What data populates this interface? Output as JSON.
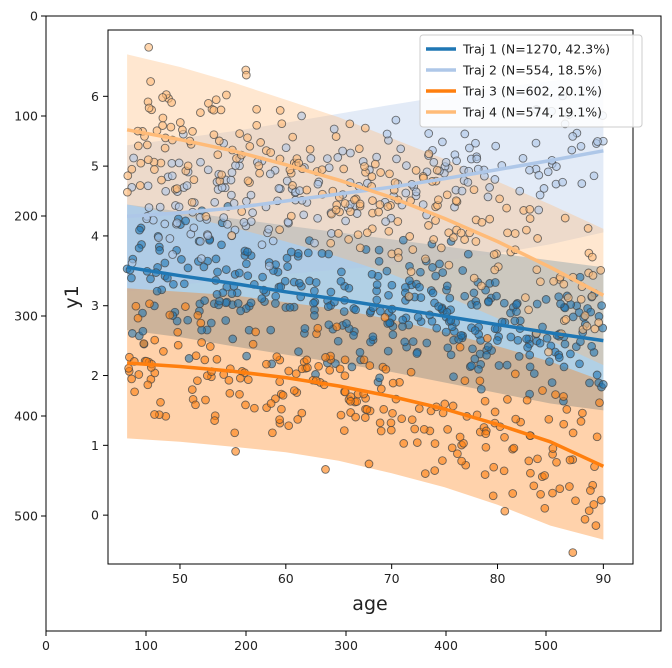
{
  "image_frame": {
    "x_ticks": [
      "0",
      "100",
      "200",
      "300",
      "400",
      "500"
    ],
    "y_ticks": [
      "0",
      "100",
      "200",
      "300",
      "400",
      "500"
    ],
    "x_range": [
      0,
      615
    ],
    "y_range": [
      0,
      615
    ]
  },
  "chart_data": {
    "type": "scatter",
    "title": "",
    "xlabel": "age",
    "ylabel": "y1",
    "xlim": [
      43.2,
      92.8
    ],
    "ylim": [
      -0.7,
      6.95
    ],
    "x_ticks": [
      50,
      60,
      70,
      80,
      90
    ],
    "y_ticks": [
      0,
      1,
      2,
      3,
      4,
      5,
      6
    ],
    "grid": false,
    "legend_position": "top-right",
    "series": [
      {
        "name": "Traj 1 (N=1270, 42.3%)",
        "color": "#1f77b4",
        "trend_x": [
          45,
          50,
          55,
          60,
          65,
          70,
          75,
          80,
          85,
          90
        ],
        "trend_y": [
          3.55,
          3.43,
          3.32,
          3.2,
          3.09,
          2.97,
          2.85,
          2.73,
          2.61,
          2.5
        ],
        "band_upper": [
          4.45,
          4.35,
          4.25,
          4.15,
          4.05,
          3.95,
          3.85,
          3.75,
          3.65,
          3.55
        ],
        "band_lower": [
          2.65,
          2.55,
          2.42,
          2.3,
          2.18,
          2.05,
          1.9,
          1.75,
          1.6,
          1.5
        ],
        "point_center_y0": 3.55,
        "point_center_y1": 2.5,
        "point_spread": 0.9
      },
      {
        "name": "Traj 2 (N=554, 18.5%)",
        "color": "#aec7e8",
        "trend_x": [
          45,
          50,
          55,
          60,
          65,
          70,
          75,
          80,
          85,
          90
        ],
        "trend_y": [
          4.28,
          4.33,
          4.4,
          4.5,
          4.6,
          4.7,
          4.82,
          4.95,
          5.08,
          5.22
        ],
        "band_upper": [
          5.3,
          5.4,
          5.5,
          5.62,
          5.75,
          5.88,
          6.0,
          6.12,
          6.22,
          6.3
        ],
        "band_lower": [
          3.2,
          3.3,
          3.38,
          3.45,
          3.52,
          3.58,
          3.65,
          3.75,
          3.88,
          4.05
        ],
        "point_center_y0": 4.28,
        "point_center_y1": 5.22,
        "point_spread": 0.85
      },
      {
        "name": "Traj 3 (N=602, 20.1%)",
        "color": "#ff7f0e",
        "trend_x": [
          45,
          50,
          55,
          60,
          65,
          70,
          75,
          80,
          85,
          90
        ],
        "trend_y": [
          2.18,
          2.13,
          2.06,
          1.97,
          1.85,
          1.7,
          1.52,
          1.3,
          1.05,
          0.7
        ],
        "band_upper": [
          3.25,
          3.2,
          3.15,
          3.05,
          2.95,
          2.8,
          2.62,
          2.42,
          2.2,
          1.92
        ],
        "band_lower": [
          1.1,
          1.05,
          0.98,
          0.9,
          0.78,
          0.6,
          0.4,
          0.15,
          -0.15,
          -0.35
        ],
        "point_center_y0": 2.18,
        "point_center_y1": 0.7,
        "point_spread": 0.95
      },
      {
        "name": "Traj 4 (N=574, 19.1%)",
        "color": "#ffbb78",
        "trend_x": [
          45,
          50,
          55,
          60,
          65,
          70,
          75,
          80,
          85,
          90
        ],
        "trend_y": [
          5.52,
          5.38,
          5.22,
          5.02,
          4.8,
          4.55,
          4.25,
          3.92,
          3.55,
          3.15
        ],
        "band_upper": [
          6.6,
          6.42,
          6.2,
          5.95,
          5.7,
          5.4,
          5.1,
          4.78,
          4.45,
          4.1
        ],
        "band_lower": [
          4.45,
          4.3,
          4.12,
          3.92,
          3.7,
          3.45,
          3.15,
          2.82,
          2.5,
          2.15
        ],
        "point_center_y0": 5.52,
        "point_center_y1": 3.15,
        "point_spread": 1.05
      }
    ]
  }
}
